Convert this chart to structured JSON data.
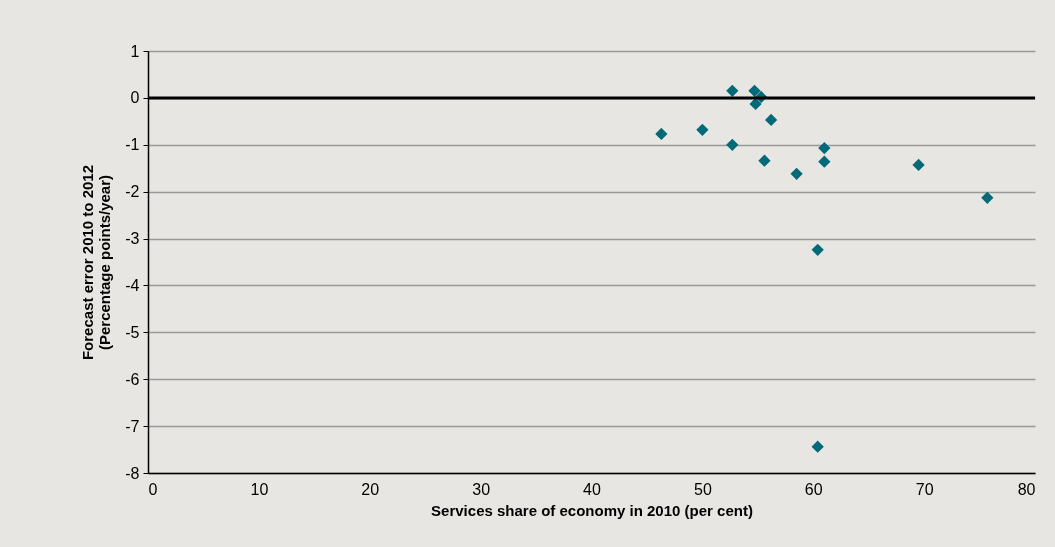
{
  "chart_data": {
    "type": "scatter",
    "xlabel": "Services share of economy in 2010 (per cent)",
    "ylabel": "Forecast error 2010 to 2012 (Percentage points/year)",
    "x": [
      46.3,
      50.0,
      52.7,
      52.7,
      54.7,
      55.3,
      54.8,
      56.2,
      55.6,
      58.5,
      61.0,
      61.0,
      60.4,
      60.4,
      69.5,
      75.7
    ],
    "series": [
      {
        "color": "#006a78",
        "values": [
          -0.77,
          -0.68,
          0.15,
          -1.0,
          0.15,
          0.02,
          -0.13,
          -0.47,
          -1.34,
          -1.62,
          -1.07,
          -1.36,
          -3.24,
          -7.44,
          -1.43,
          -2.13
        ]
      }
    ],
    "xlim": [
      0,
      80
    ],
    "xticks": [
      0,
      10,
      20,
      30,
      40,
      50,
      60,
      70,
      80
    ],
    "ylim": [
      -8,
      1
    ],
    "yticks": [
      -8,
      -7,
      -6,
      -5,
      -4,
      -3,
      -2,
      -1,
      0,
      1
    ],
    "grid": "y",
    "marker": "diamond",
    "legend": false,
    "ref_lines": [
      {
        "axis": "y",
        "value": 0,
        "color": "#000000"
      }
    ]
  }
}
